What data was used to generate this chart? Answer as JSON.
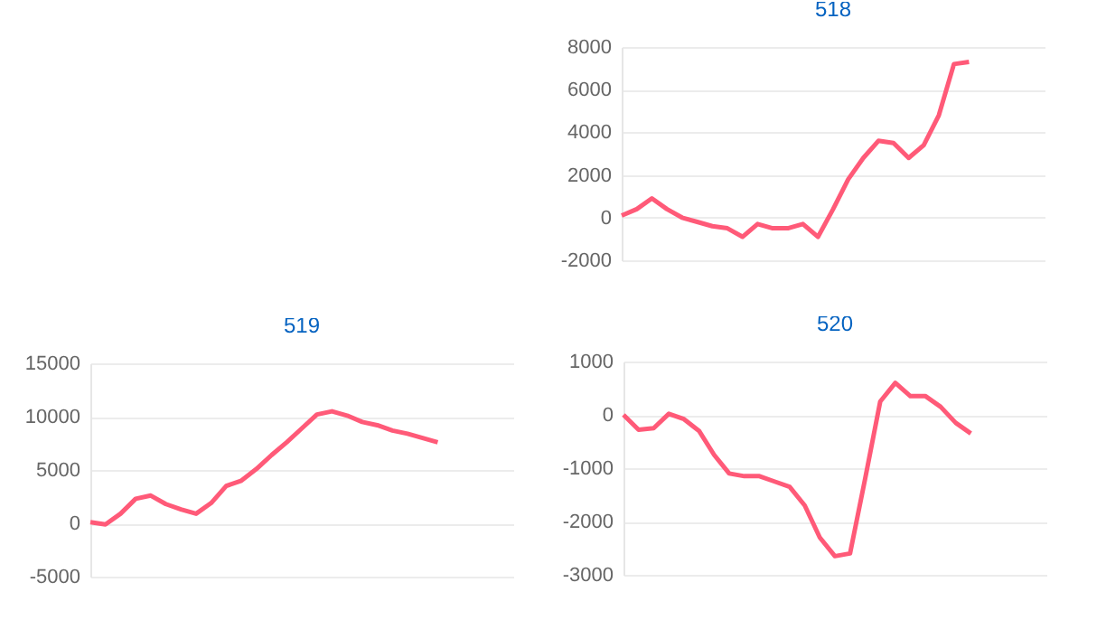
{
  "chart_data": [
    {
      "type": "line",
      "title": "518",
      "categories": [
        null,
        null,
        null,
        null,
        null,
        null,
        null,
        null,
        null,
        null,
        null,
        null,
        null,
        null,
        null,
        null,
        null,
        null,
        null,
        null,
        null,
        null,
        null,
        null,
        null,
        null,
        null,
        null,
        null
      ],
      "values": [
        100,
        400,
        900,
        400,
        0,
        -200,
        -400,
        -500,
        -900,
        -300,
        -500,
        -500,
        -300,
        -900,
        400,
        1800,
        2800,
        3600,
        3500,
        2800,
        3400,
        4800,
        7200,
        7300,
        null,
        null,
        null,
        null,
        null
      ],
      "color": "#ff5a78",
      "ylim": [
        -2000,
        8000
      ],
      "yticks": [
        -2000,
        0,
        2000,
        4000,
        6000,
        8000
      ],
      "grid": "y",
      "tick_labels": "y"
    },
    {
      "type": "line",
      "title": "519",
      "categories": [
        null,
        null,
        null,
        null,
        null,
        null,
        null,
        null,
        null,
        null,
        null,
        null,
        null,
        null,
        null,
        null,
        null,
        null,
        null,
        null,
        null,
        null,
        null,
        null,
        null,
        null,
        null,
        null,
        null
      ],
      "values": [
        100,
        -100,
        900,
        2300,
        2600,
        1800,
        1300,
        900,
        1900,
        3500,
        4000,
        5100,
        6400,
        7600,
        8900,
        10200,
        10500,
        10100,
        9500,
        9200,
        8700,
        8400,
        8000,
        7600,
        null,
        null,
        null,
        null,
        null
      ],
      "color": "#ff5a78",
      "ylim": [
        -5000,
        15000
      ],
      "yticks": [
        -5000,
        0,
        5000,
        10000,
        15000
      ],
      "grid": "y",
      "tick_labels": "y"
    },
    {
      "type": "line",
      "title": "520",
      "categories": [
        null,
        null,
        null,
        null,
        null,
        null,
        null,
        null,
        null,
        null,
        null,
        null,
        null,
        null,
        null,
        null,
        null,
        null,
        null,
        null,
        null,
        null,
        null,
        null,
        null,
        null,
        null,
        null,
        null
      ],
      "values": [
        0,
        -280,
        -250,
        20,
        -80,
        -300,
        -750,
        -1100,
        -1150,
        -1150,
        -1250,
        -1350,
        -1700,
        -2300,
        -2650,
        -2600,
        -1200,
        250,
        600,
        350,
        350,
        150,
        -150,
        -350,
        null,
        null,
        null,
        null,
        null
      ],
      "color": "#ff5a78",
      "ylim": [
        -3000,
        1000
      ],
      "yticks": [
        -3000,
        -2000,
        -1000,
        0,
        1000
      ],
      "grid": "y",
      "tick_labels": "y"
    }
  ]
}
